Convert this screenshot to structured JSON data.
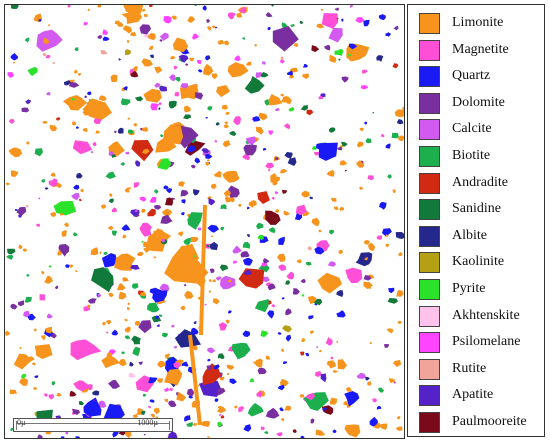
{
  "scale_bar": {
    "start_label": "0µ",
    "end_label": "1000µ"
  },
  "legend": {
    "items": [
      {
        "label": "Limonite",
        "color": "#F7941D"
      },
      {
        "label": "Magnetite",
        "color": "#FF4FD6"
      },
      {
        "label": "Quartz",
        "color": "#1A1AF5"
      },
      {
        "label": "Dolomite",
        "color": "#7A2FA0"
      },
      {
        "label": "Calcite",
        "color": "#D25AF0"
      },
      {
        "label": "Biotite",
        "color": "#1DAF4E"
      },
      {
        "label": "Andradite",
        "color": "#D12A12"
      },
      {
        "label": "Sanidine",
        "color": "#117A3A"
      },
      {
        "label": "Albite",
        "color": "#24288C"
      },
      {
        "label": "Kaolinite",
        "color": "#B5A015"
      },
      {
        "label": "Pyrite",
        "color": "#2BE22B"
      },
      {
        "label": "Akhtenskite",
        "color": "#FFC2EA"
      },
      {
        "label": "Psilomelane",
        "color": "#FF44FF"
      },
      {
        "label": "Rutite",
        "color": "#F0A49A"
      },
      {
        "label": "Apatite",
        "color": "#5422C8"
      },
      {
        "label": "Paulmooreite",
        "color": "#7A0A1A"
      }
    ]
  }
}
